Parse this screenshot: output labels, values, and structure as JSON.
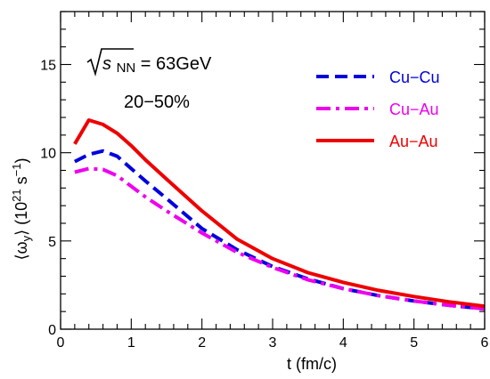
{
  "chart_data": {
    "type": "line",
    "xlabel": "t (fm/c)",
    "ylabel_parts": [
      "⟨ω",
      "y",
      "⟩  (10",
      "21",
      " s",
      "−1",
      ")"
    ],
    "xlim": [
      0,
      6
    ],
    "ylim": [
      0,
      18
    ],
    "x_ticks": [
      0,
      1,
      2,
      3,
      4,
      5,
      6
    ],
    "y_ticks": [
      0,
      5,
      10,
      15
    ],
    "grid": false,
    "legend_position": "top-right",
    "annotations": {
      "energy_prefix": "s",
      "energy_sub": "NN",
      "energy_value": " = 63GeV",
      "centrality": "20−50%"
    },
    "series": [
      {
        "name": "Cu−Cu",
        "color": "#0000dd",
        "dash": "dashed",
        "x": [
          0.2,
          0.4,
          0.6,
          0.8,
          1.0,
          1.2,
          1.5,
          2.0,
          2.5,
          3.0,
          3.5,
          4.0,
          4.5,
          5.0,
          5.5,
          6.0
        ],
        "y": [
          9.5,
          9.9,
          10.1,
          9.8,
          9.1,
          8.4,
          7.4,
          5.7,
          4.5,
          3.55,
          2.85,
          2.3,
          1.9,
          1.6,
          1.35,
          1.15
        ]
      },
      {
        "name": "Cu−Au",
        "color": "#ee00ee",
        "dash": "dashdot",
        "x": [
          0.2,
          0.4,
          0.6,
          0.8,
          1.0,
          1.2,
          1.5,
          2.0,
          2.5,
          3.0,
          3.5,
          4.0,
          4.5,
          5.0,
          5.5,
          6.0
        ],
        "y": [
          8.9,
          9.1,
          9.05,
          8.7,
          8.1,
          7.5,
          6.7,
          5.45,
          4.35,
          3.5,
          2.8,
          2.3,
          1.9,
          1.6,
          1.35,
          1.15
        ]
      },
      {
        "name": "Au−Au",
        "color": "#ee0000",
        "dash": "solid",
        "x": [
          0.2,
          0.4,
          0.6,
          0.8,
          1.0,
          1.2,
          1.5,
          2.0,
          2.5,
          3.0,
          3.5,
          4.0,
          4.5,
          5.0,
          5.5,
          6.0
        ],
        "y": [
          10.5,
          11.85,
          11.6,
          11.1,
          10.4,
          9.6,
          8.5,
          6.7,
          5.1,
          4.0,
          3.2,
          2.65,
          2.2,
          1.85,
          1.55,
          1.3
        ]
      }
    ]
  }
}
